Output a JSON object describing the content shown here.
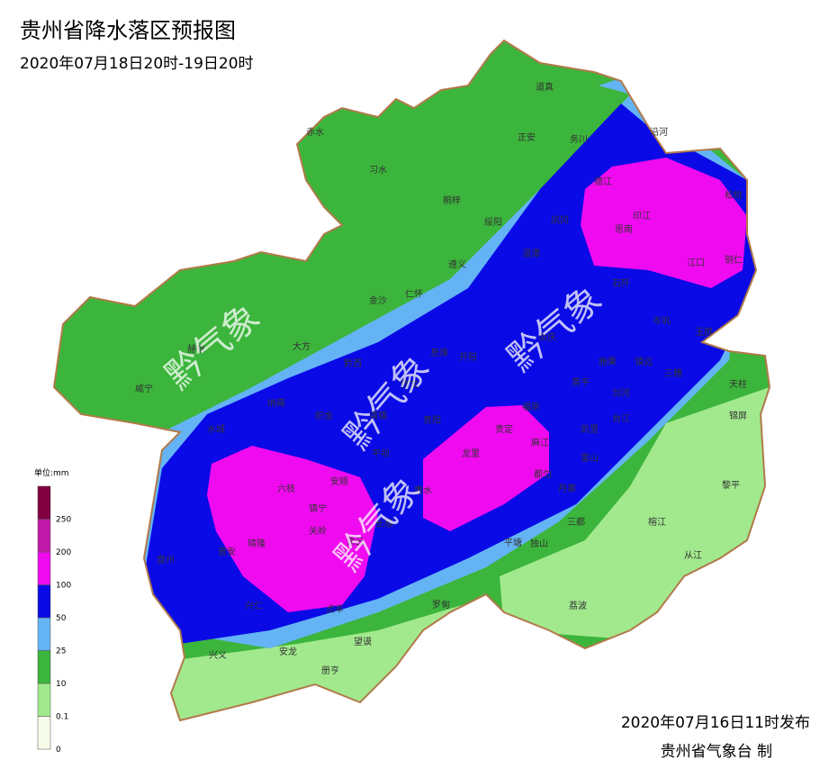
{
  "header": {
    "title": "贵州省降水落区预报图",
    "subtitle": "2020年07月18日20时-19日20时"
  },
  "legend": {
    "unit": "单位:mm",
    "labels": [
      "0",
      "0.1",
      "10",
      "25",
      "50",
      "100",
      "200",
      "250"
    ]
  },
  "watermark": "黔气象",
  "cities": [
    "道真",
    "务川",
    "正安",
    "桐梓",
    "习水",
    "赤水",
    "绥阳",
    "湄潭",
    "凤冈",
    "德江",
    "沿河",
    "印江",
    "思南",
    "松桃",
    "江口",
    "铜仁",
    "石阡",
    "遵义",
    "金沙",
    "仁怀",
    "大方",
    "赫章",
    "威宁",
    "黔西",
    "开阳",
    "余庆",
    "镇远",
    "岑巩",
    "玉屏",
    "三穗",
    "天柱",
    "锦屏",
    "黎平",
    "榕江",
    "从江",
    "剑河",
    "台江",
    "黄平",
    "施秉",
    "福泉",
    "凯里",
    "麻江",
    "雷山",
    "丹寨",
    "三都",
    "荔波",
    "独山",
    "平塘",
    "罗甸",
    "望谟",
    "册亨",
    "安龙",
    "兴义",
    "兴仁",
    "普安",
    "盘州",
    "晴隆",
    "关岭",
    "镇宁",
    "安顺",
    "六枝",
    "水城",
    "纳雍",
    "织金",
    "平坝",
    "清镇",
    "修文",
    "息烽",
    "贵阳",
    "龙里",
    "贵定",
    "都匀",
    "惠水",
    "长顺",
    "紫云",
    "贞丰"
  ],
  "footer": {
    "issued": "2020年07月16日11时发布",
    "agency": "贵州省气象台 制"
  }
}
